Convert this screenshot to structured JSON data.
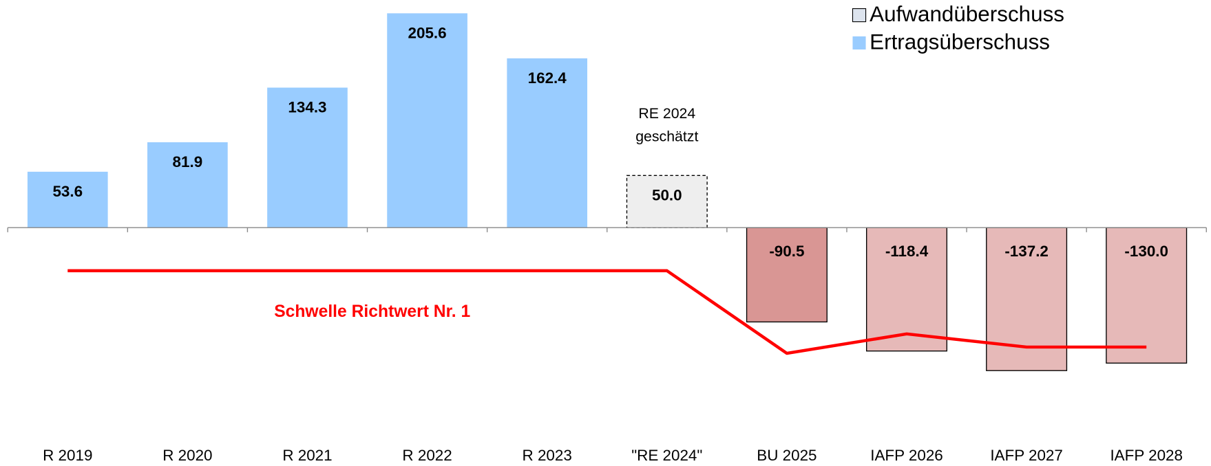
{
  "chart_data": {
    "type": "bar",
    "categories": [
      "R 2019",
      "R 2020",
      "R 2021",
      "R 2022",
      "R 2023",
      "\"RE 2024\"",
      "BU 2025",
      "IAFP 2026",
      "IAFP 2027",
      "IAFP 2028"
    ],
    "values": [
      53.6,
      81.9,
      134.3,
      205.6,
      162.4,
      50.0,
      -90.5,
      -118.4,
      -137.2,
      -130.0
    ],
    "value_labels": [
      "53.6",
      "81.9",
      "134.3",
      "205.6",
      "162.4",
      "50.0",
      "-90.5",
      "-118.4",
      "-137.2",
      "-130.0"
    ],
    "colors": [
      "#99ccff",
      "#99ccff",
      "#99ccff",
      "#99ccff",
      "#99ccff",
      "#eeeeee",
      "#d99694",
      "#e6b9b8",
      "#e6b9b8",
      "#e6b9b8"
    ],
    "edgecolors": [
      "none",
      "none",
      "none",
      "none",
      "none",
      "#000000",
      "#000000",
      "#000000",
      "#000000",
      "#000000"
    ],
    "ylim": [
      -220,
      220
    ],
    "line": {
      "name": "Schwelle Richtwert Nr. 1",
      "color": "#ff0000",
      "values": [
        -41.4,
        -41.4,
        -41.4,
        -41.4,
        -41.4,
        -41.4,
        -120.6,
        -102,
        -114.6,
        -114.6
      ]
    },
    "annotation": [
      "RE 2024",
      "geschätzt"
    ],
    "legend": [
      {
        "name": "Aufwandüberschuss",
        "color": "#dde4ee"
      },
      {
        "name": "Ertragsüberschuss",
        "color": "#99ccff"
      }
    ],
    "legend_location": "upper right"
  }
}
